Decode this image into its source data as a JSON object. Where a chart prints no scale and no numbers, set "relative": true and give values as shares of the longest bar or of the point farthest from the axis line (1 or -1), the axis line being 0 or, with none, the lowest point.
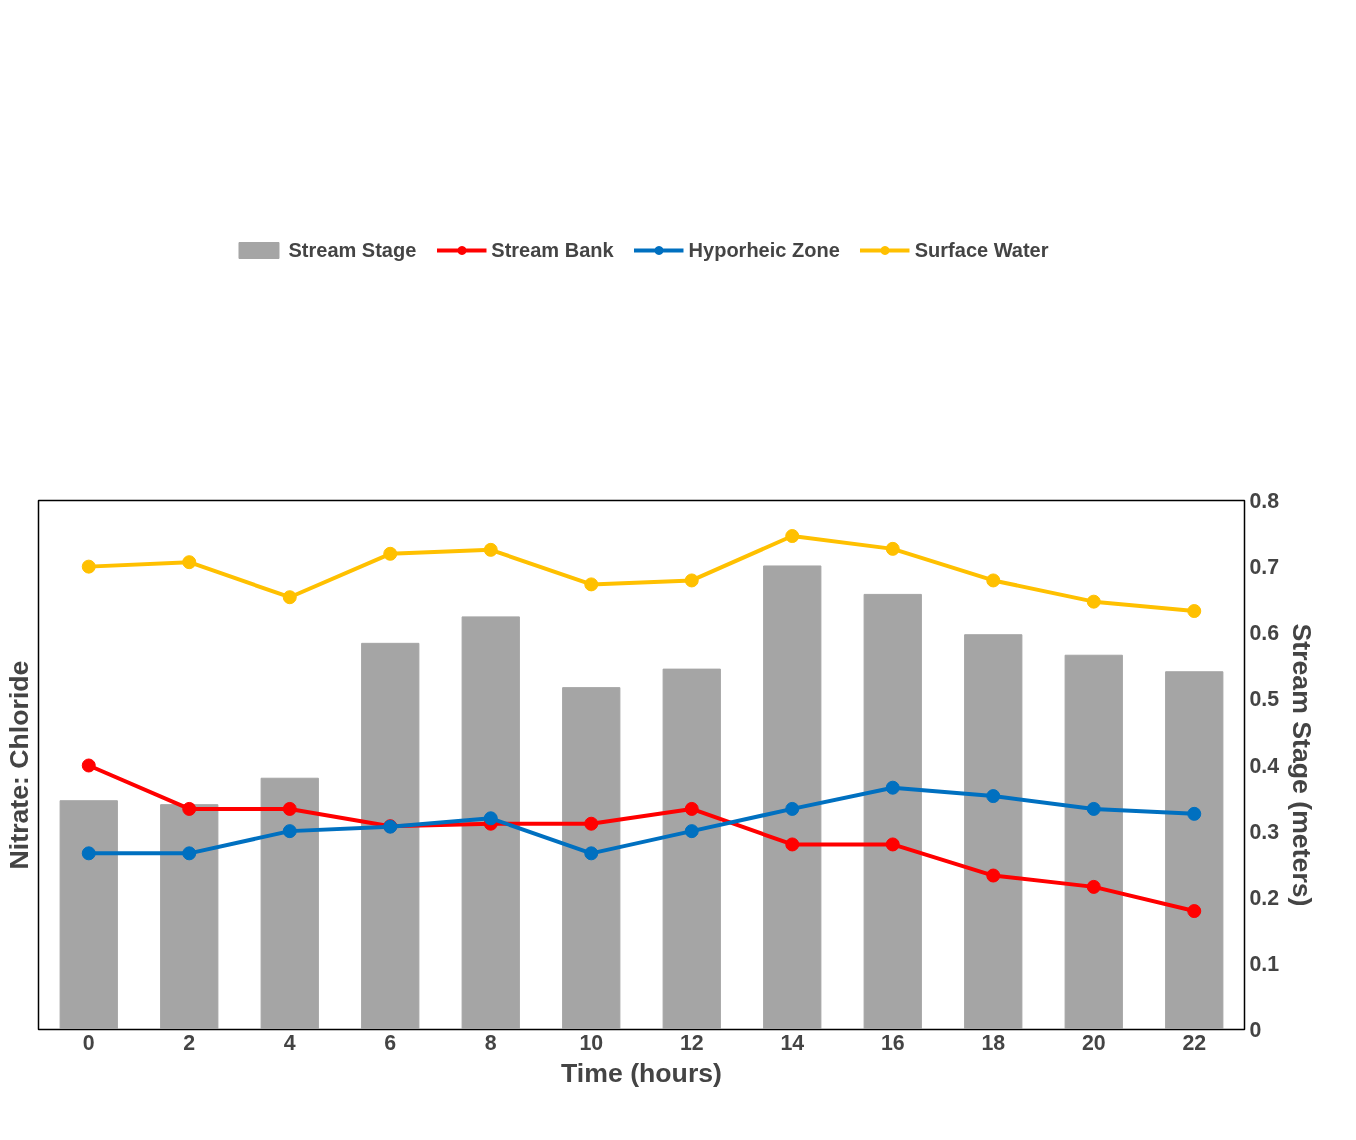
{
  "chart_data": {
    "type": "line",
    "relative": true,
    "xlabel": "Time (hours)",
    "ylabel": "Nitrate: Chloride",
    "y2label": "Stream Stage (meters)",
    "categories": [
      "0",
      "2",
      "4",
      "6",
      "8",
      "10",
      "12",
      "14",
      "16",
      "18",
      "20",
      "22"
    ],
    "y2lim": [
      0,
      0.8
    ],
    "y2ticks": [
      0,
      0.1,
      0.2,
      0.3,
      0.4,
      0.5,
      0.6,
      0.7,
      0.8
    ],
    "grid": false,
    "legend": "top",
    "marker": "circle",
    "line_style": "solid",
    "series": [
      {
        "name": "Stream Stage",
        "type": "bar",
        "axis": "y2",
        "color": "#a5a5a5",
        "values": [
          0.346,
          0.34,
          0.38,
          0.584,
          0.624,
          0.517,
          0.545,
          0.701,
          0.658,
          0.597,
          0.566,
          0.541
        ]
      },
      {
        "name": "Stream Bank",
        "color": "#ff0000",
        "values": [
          0.535,
          0.447,
          0.447,
          0.412,
          0.417,
          0.417,
          0.447,
          0.375,
          0.375,
          0.312,
          0.289,
          0.24
        ]
      },
      {
        "name": "Hyporheic Zone",
        "color": "#0070c0",
        "values": [
          0.357,
          0.357,
          0.402,
          0.411,
          0.428,
          0.357,
          0.402,
          0.447,
          0.49,
          0.473,
          0.447,
          0.437
        ]
      },
      {
        "name": "Surface Water",
        "color": "#ffc000",
        "values": [
          0.938,
          0.947,
          0.876,
          0.964,
          0.972,
          0.902,
          0.91,
          1,
          0.974,
          0.91,
          0.867,
          0.848
        ]
      }
    ]
  }
}
